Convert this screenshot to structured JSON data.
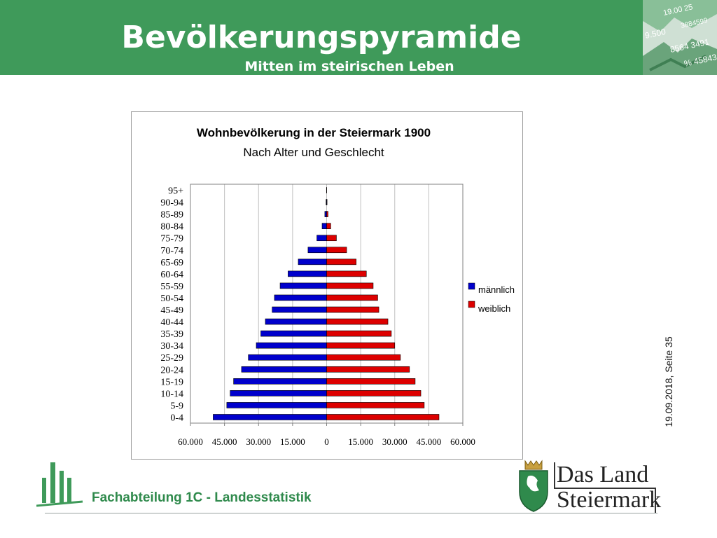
{
  "header": {
    "title": "Bevölkerungspyramide",
    "subtitle": "Mitten im steirischen Leben",
    "image_text": [
      "9.500",
      "8564 3491",
      "% 45843",
      "19.00 25",
      "3884599"
    ]
  },
  "chart_data": {
    "type": "bar",
    "title": "Wohnbevölkerung in der Steiermark 1900",
    "subtitle": "Nach Alter und Geschlecht",
    "categories": [
      "0-4",
      "5-9",
      "10-14",
      "15-19",
      "20-24",
      "25-29",
      "30-34",
      "35-39",
      "40-44",
      "45-49",
      "50-54",
      "55-59",
      "60-64",
      "65-69",
      "70-74",
      "75-79",
      "80-84",
      "85-89",
      "90-94",
      "95+"
    ],
    "series": [
      {
        "name": "männlich",
        "color": "#0000cc",
        "values": [
          50000,
          44000,
          42500,
          41000,
          37500,
          34500,
          31000,
          29000,
          27000,
          24000,
          23000,
          20500,
          17000,
          12500,
          8200,
          4300,
          2000,
          800,
          250,
          70
        ]
      },
      {
        "name": "weiblich",
        "color": "#dd0000",
        "values": [
          49500,
          43000,
          41500,
          39000,
          36500,
          32500,
          30000,
          28500,
          27000,
          23000,
          22500,
          20500,
          17500,
          13000,
          8800,
          4300,
          1800,
          600,
          180,
          40
        ]
      }
    ],
    "xticks": [
      "60.000",
      "45.000",
      "30.000",
      "15.000",
      "0",
      "15.000",
      "30.000",
      "45.000",
      "60.000"
    ],
    "xlim": [
      -60000,
      60000
    ],
    "grid": true,
    "legend": "right"
  },
  "side_text": "19.09.2018, Seite 35",
  "footer": {
    "label": "Fachabteilung 1C -  Landesstatistik",
    "brand_line1": "Das Land",
    "brand_line2": "Steiermark"
  }
}
